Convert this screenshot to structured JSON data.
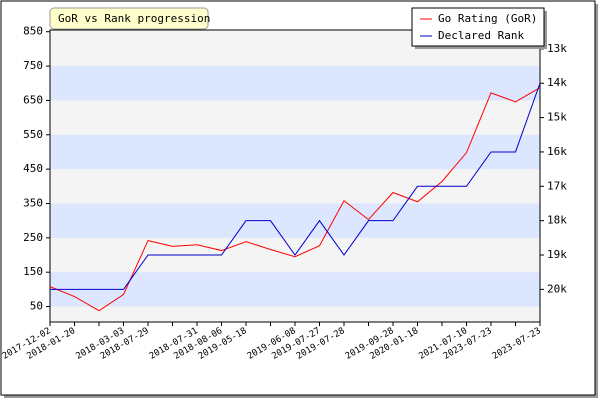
{
  "chart_data": {
    "type": "line",
    "title": "GoR vs Rank progression",
    "categories": [
      "2017-12-02",
      "2018-01-20",
      null,
      "2018-03-03",
      "2018-07-29",
      null,
      "2018-07-31",
      "2018-08-06",
      "2019-05-18",
      null,
      "2019-06-08",
      "2019-07-27",
      "2019-07-28",
      null,
      "2019-09-28",
      "2020-01-18",
      null,
      "2021-07-10",
      "2023-07-23",
      null,
      "2023-07-23"
    ],
    "series": [
      {
        "name": "Go Rating (GoR)",
        "color": "#ff0000",
        "values": [
          108,
          79,
          38,
          85,
          242,
          225,
          230,
          213,
          239,
          216,
          195,
          227,
          358,
          303,
          382,
          355,
          414,
          498,
          672,
          646,
          687
        ]
      },
      {
        "name": "Declared Rank",
        "color": "#0000cc",
        "axis": "y2",
        "values": [
          20,
          20,
          20,
          20,
          19,
          19,
          19,
          19,
          18,
          18,
          19,
          18,
          19,
          18,
          18,
          17,
          17,
          17,
          16,
          16,
          14
        ]
      }
    ],
    "ylim": [
      5,
      855
    ],
    "yticks": [
      50,
      150,
      250,
      350,
      450,
      550,
      650,
      750,
      850
    ],
    "y2lim": [
      20.95,
      12.45
    ],
    "y2ticks": [
      {
        "value": 20,
        "label": "20k"
      },
      {
        "value": 19,
        "label": "19k"
      },
      {
        "value": 18,
        "label": "18k"
      },
      {
        "value": 17,
        "label": "17k"
      },
      {
        "value": 16,
        "label": "16k"
      },
      {
        "value": 15,
        "label": "15k"
      },
      {
        "value": 14,
        "label": "14k"
      },
      {
        "value": 13,
        "label": "13k"
      }
    ],
    "legend": "top-right"
  }
}
